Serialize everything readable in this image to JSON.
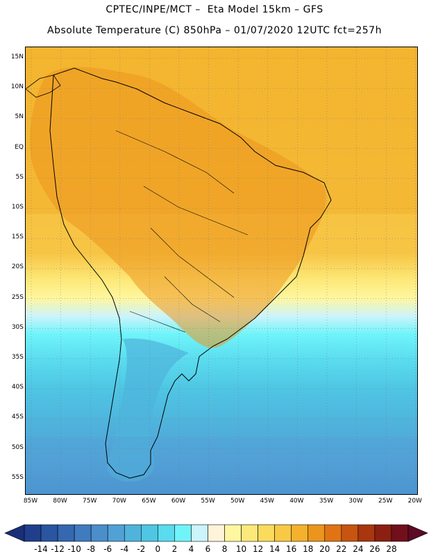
{
  "header": {
    "line1": "CPTEC/INPE/MCT –  Eta Model 15km – GFS",
    "line2": "Absolute Temperature (C) 850hPa – 01/07/2020 12UTC fct=257h"
  },
  "map": {
    "lat_labels": [
      "15N",
      "10N",
      "5N",
      "EQ",
      "5S",
      "10S",
      "15S",
      "20S",
      "25S",
      "30S",
      "35S",
      "40S",
      "45S",
      "50S",
      "55S"
    ],
    "lon_labels": [
      "85W",
      "80W",
      "75W",
      "70W",
      "65W",
      "60W",
      "55W",
      "50W",
      "45W",
      "40W",
      "35W",
      "30W",
      "25W",
      "20W"
    ]
  },
  "colorbar": {
    "labels": [
      "-14",
      "-12",
      "-10",
      "-8",
      "-6",
      "-4",
      "-2",
      "0",
      "2",
      "4",
      "6",
      "8",
      "10",
      "12",
      "14",
      "16",
      "18",
      "20",
      "22",
      "24",
      "26",
      "28"
    ],
    "colors": [
      "#1f3e8c",
      "#2a55a0",
      "#3468b0",
      "#3f7bbf",
      "#4a8ecc",
      "#52a1d6",
      "#4fb3dc",
      "#4fc6e4",
      "#5adbee",
      "#6ff4fa",
      "#ccf4fb",
      "#fff3d9",
      "#fff6a0",
      "#fde979",
      "#fbdb5c",
      "#f8c945",
      "#f3b12c",
      "#ec951d",
      "#e07414",
      "#c75410",
      "#a8360e",
      "#8b1f12",
      "#71101a"
    ],
    "left_arrow_color": "#1a2f78",
    "right_arrow_color": "#5c0a25"
  }
}
